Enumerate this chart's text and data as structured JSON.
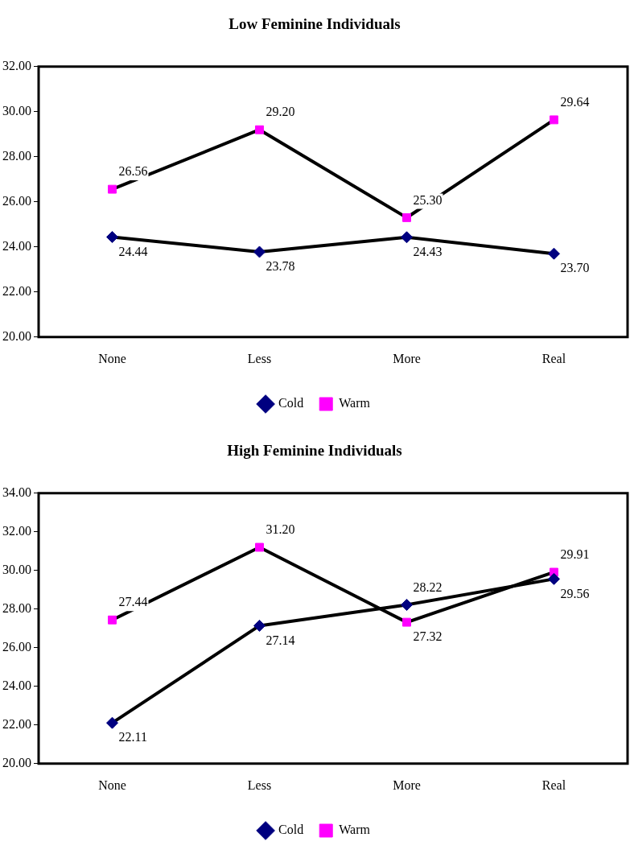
{
  "chart_data": [
    {
      "type": "line",
      "title": "Low Feminine Individuals",
      "categories": [
        "None",
        "Less",
        "More",
        "Real"
      ],
      "series": [
        {
          "name": "Cold",
          "color": "#000080",
          "marker": "diamond",
          "values": [
            24.44,
            23.78,
            24.43,
            23.7
          ],
          "value_labels": [
            "24.44",
            "23.78",
            "24.43",
            "23.70"
          ]
        },
        {
          "name": "Warm",
          "color": "#ff00ff",
          "marker": "square",
          "values": [
            26.56,
            29.2,
            25.3,
            29.64
          ],
          "value_labels": [
            "26.56",
            "29.20",
            "25.30",
            "29.64"
          ]
        }
      ],
      "ylim": [
        20,
        32
      ],
      "yticks": [
        {
          "value": 20,
          "label": "20.00"
        },
        {
          "value": 22,
          "label": "22.00"
        },
        {
          "value": 24,
          "label": "24.00"
        },
        {
          "value": 26,
          "label": "26.00"
        },
        {
          "value": 28,
          "label": "28.00"
        },
        {
          "value": 30,
          "label": "30.00"
        },
        {
          "value": 32,
          "label": "32.00"
        }
      ],
      "grid": false,
      "legend": "bottom",
      "line_style": "solid"
    },
    {
      "type": "line",
      "title": "High Feminine Individuals",
      "categories": [
        "None",
        "Less",
        "More",
        "Real"
      ],
      "series": [
        {
          "name": "Cold",
          "color": "#000080",
          "marker": "diamond",
          "values": [
            22.11,
            27.14,
            28.22,
            29.56
          ],
          "value_labels": [
            "22.11",
            "27.14",
            "28.22",
            "29.56"
          ]
        },
        {
          "name": "Warm",
          "color": "#ff00ff",
          "marker": "square",
          "values": [
            27.44,
            31.2,
            27.32,
            29.91
          ],
          "value_labels": [
            "27.44",
            "31.20",
            "27.32",
            "29.91"
          ]
        }
      ],
      "ylim": [
        20,
        34
      ],
      "yticks": [
        {
          "value": 20,
          "label": "20.00"
        },
        {
          "value": 22,
          "label": "22.00"
        },
        {
          "value": 24,
          "label": "24.00"
        },
        {
          "value": 26,
          "label": "26.00"
        },
        {
          "value": 28,
          "label": "28.00"
        },
        {
          "value": 30,
          "label": "30.00"
        },
        {
          "value": 32,
          "label": "32.00"
        },
        {
          "value": 34,
          "label": "34.00"
        }
      ],
      "grid": false,
      "legend": "bottom",
      "line_style": "solid"
    }
  ]
}
